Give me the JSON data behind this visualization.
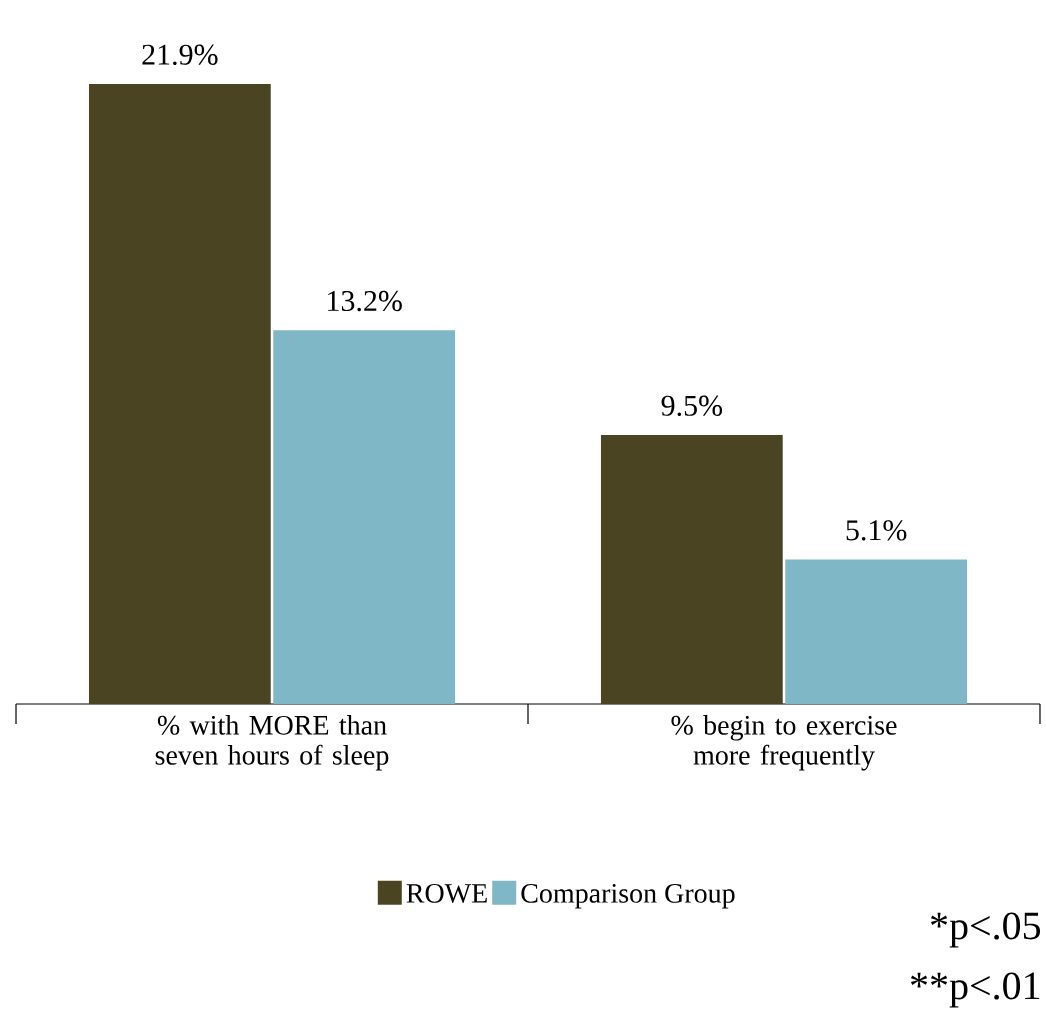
{
  "chart_data": {
    "type": "bar",
    "categories": [
      "% with MORE than seven hours of sleep",
      "% begin to exercise more frequently"
    ],
    "series": [
      {
        "name": "ROWE",
        "color": "#4a4422",
        "values": [
          21.9,
          9.5
        ],
        "value_labels": [
          "21.9%",
          "9.5%"
        ]
      },
      {
        "name": "Comparison Group",
        "color": "#80b7c6",
        "values": [
          13.2,
          5.1
        ],
        "value_labels": [
          "13.2%",
          "5.1%"
        ]
      }
    ],
    "legend": "bottom",
    "annotations": [
      "*p<.05",
      "**p<.01"
    ]
  }
}
